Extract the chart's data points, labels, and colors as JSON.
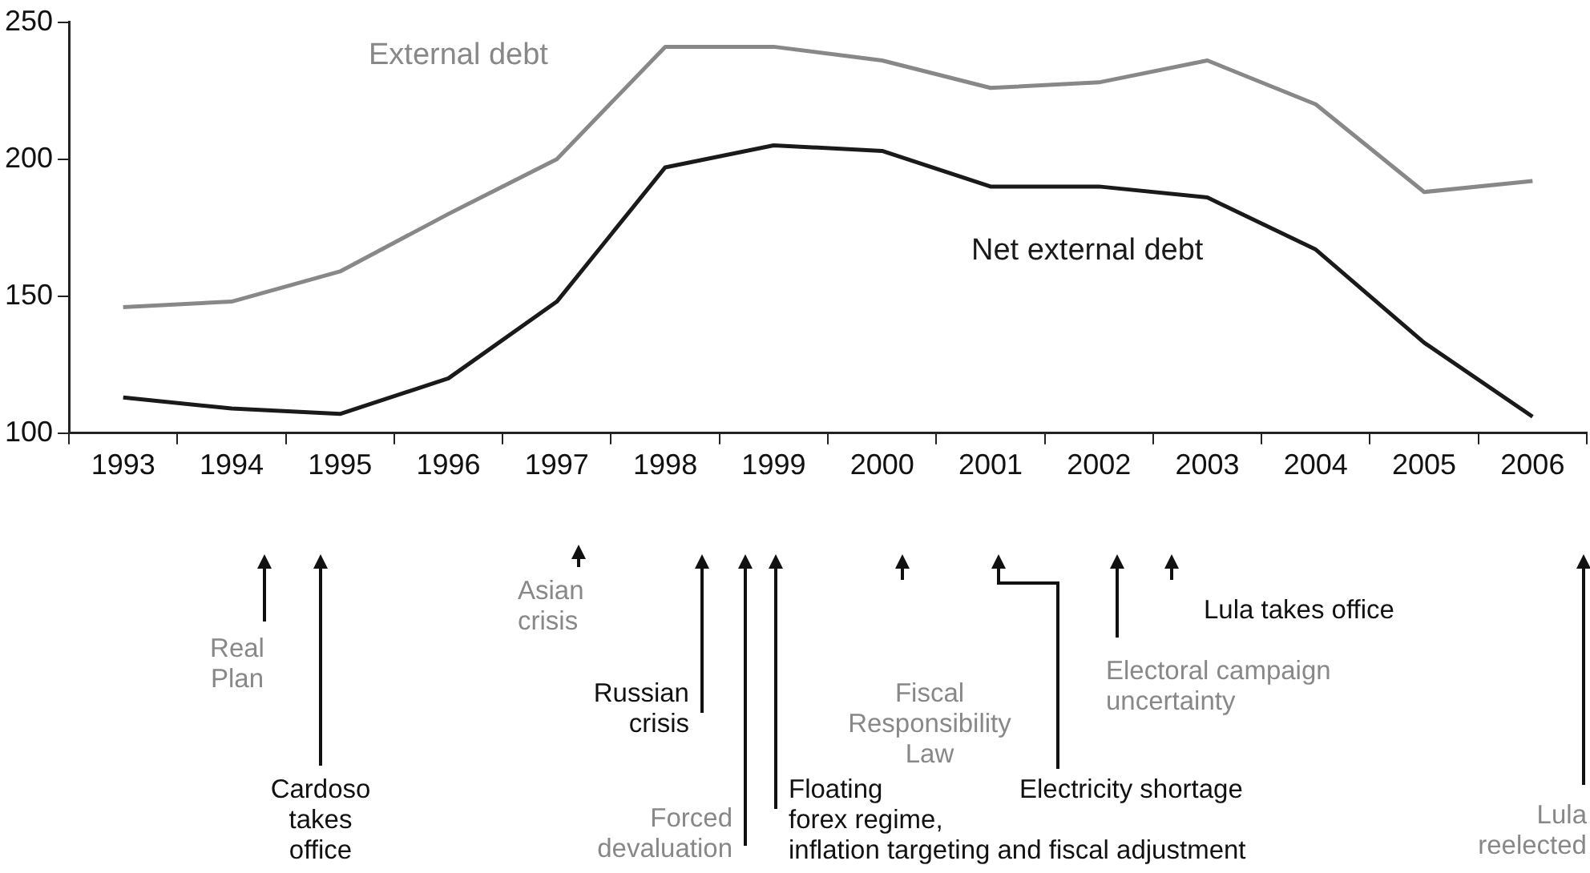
{
  "chart_data": {
    "type": "line",
    "categories": [
      "1993",
      "1994",
      "1995",
      "1996",
      "1997",
      "1998",
      "1999",
      "2000",
      "2001",
      "2002",
      "2003",
      "2004",
      "2005",
      "2006"
    ],
    "series": [
      {
        "name": "External debt",
        "color": "#888888",
        "values": [
          146,
          148,
          159,
          180,
          200,
          241,
          241,
          236,
          226,
          228,
          236,
          220,
          188,
          192
        ]
      },
      {
        "name": "Net external debt",
        "color": "#1a1a1a",
        "values": [
          113,
          109,
          107,
          120,
          148,
          197,
          205,
          203,
          190,
          190,
          186,
          167,
          133,
          106
        ]
      }
    ],
    "ylim": [
      100,
      250
    ],
    "yticks": [
      100,
      150,
      200,
      250
    ],
    "legend": false,
    "marker": "none",
    "line_style": "solid",
    "annotations": [
      "Real\nPlan",
      "Cardoso\ntakes\noffice",
      "Asian\ncrisis",
      "Russian\ncrisis",
      "Forced\ndevaluation",
      "Floating\nforex regime,\ninflation targeting and fiscal adjustment",
      "Fiscal\nResponsibility\nLaw",
      "Electricity shortage",
      "Electoral campaign\nuncertainty",
      "Lula takes office",
      "Lula\nreelected"
    ]
  }
}
